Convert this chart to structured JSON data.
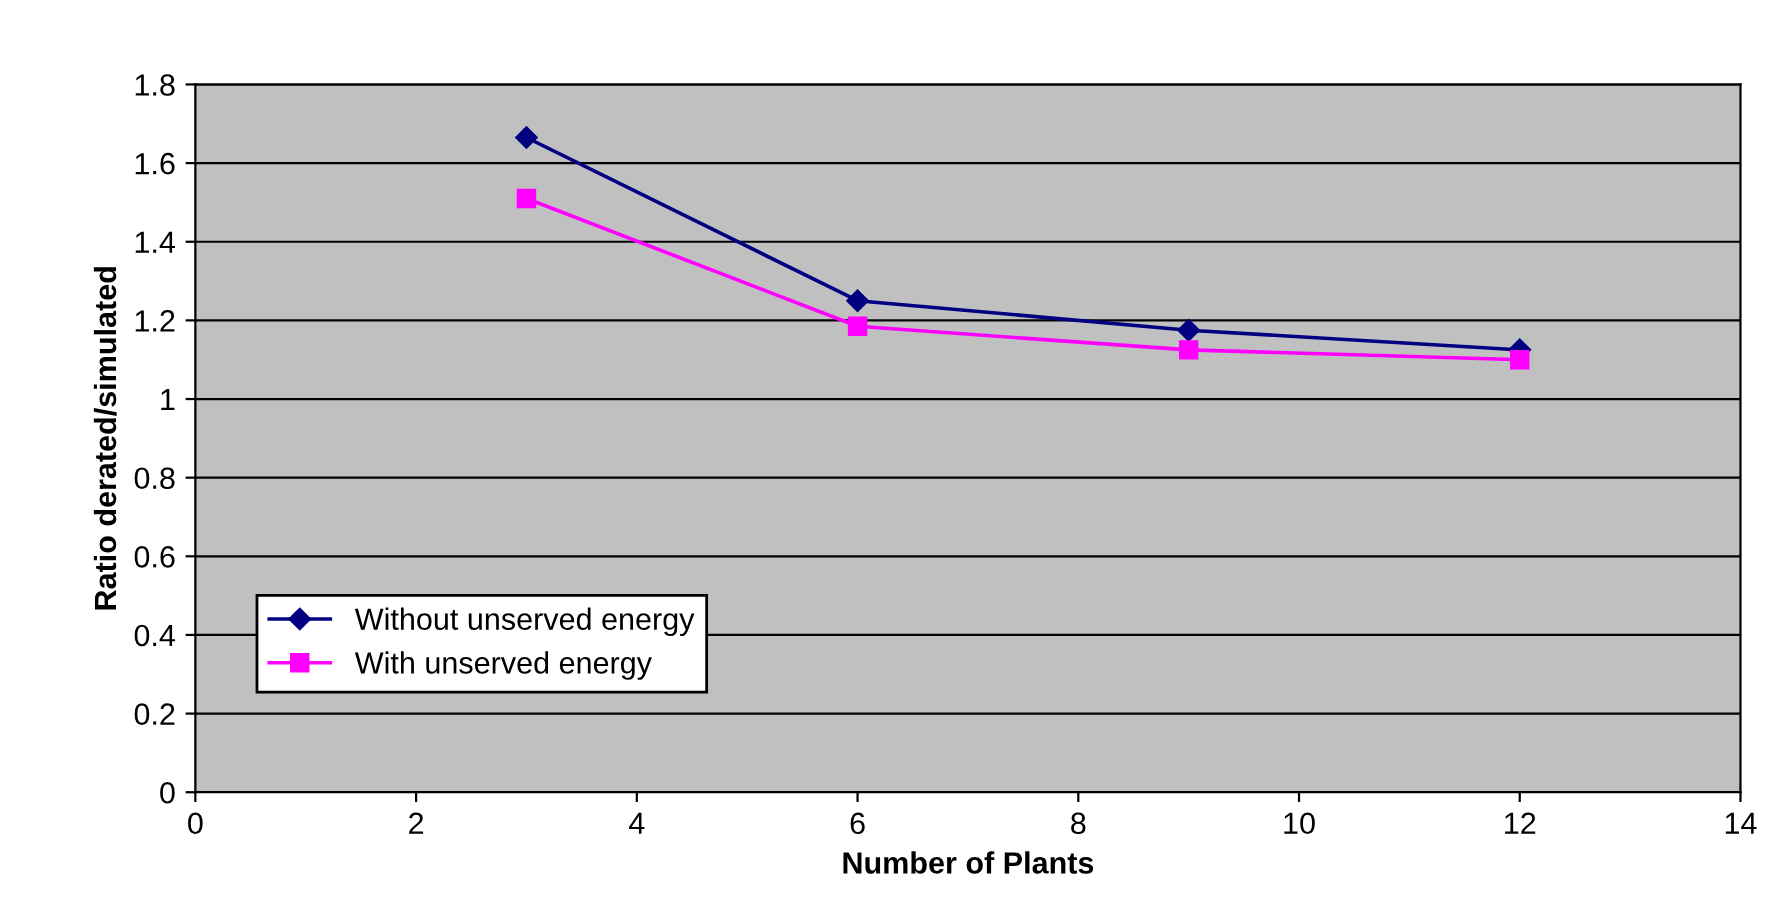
{
  "chart_data": {
    "type": "line",
    "xlabel": "Number of Plants",
    "ylabel": "Ratio derated/simulated",
    "x": [
      3,
      6,
      9,
      12
    ],
    "series": [
      {
        "name": "Without unserved energy",
        "color": "#000080",
        "marker": "diamond",
        "values": [
          1.665,
          1.25,
          1.175,
          1.125
        ]
      },
      {
        "name": "With unserved energy",
        "color": "#ff00ff",
        "marker": "square",
        "values": [
          1.51,
          1.185,
          1.125,
          1.1
        ]
      }
    ],
    "xlim": [
      0,
      14
    ],
    "xticks": [
      0,
      2,
      4,
      6,
      8,
      10,
      12,
      14
    ],
    "ylim": [
      0,
      1.8
    ],
    "yticks": [
      0,
      0.2,
      0.4,
      0.6,
      0.8,
      1,
      1.2,
      1.4,
      1.6,
      1.8
    ],
    "grid": "y",
    "legend": "bottom left",
    "line_style": "solid"
  }
}
